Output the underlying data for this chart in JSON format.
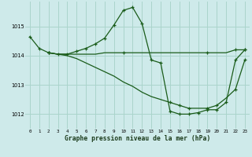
{
  "title": "Graphe pression niveau de la mer (hPa)",
  "bg_color": "#ceeaea",
  "grid_color": "#aad4cc",
  "line_color": "#1a5c1a",
  "xlim": [
    -0.5,
    23.5
  ],
  "ylim": [
    1011.5,
    1015.85
  ],
  "yticks": [
    1012,
    1013,
    1014,
    1015
  ],
  "xticks": [
    0,
    1,
    2,
    3,
    4,
    5,
    6,
    7,
    8,
    9,
    10,
    11,
    12,
    13,
    14,
    15,
    16,
    17,
    18,
    19,
    20,
    21,
    22,
    23
  ],
  "series0_x": [
    0,
    1,
    2,
    3,
    4,
    5,
    6,
    7,
    8,
    9,
    10,
    11,
    12,
    13,
    14,
    15,
    16,
    17,
    18,
    19,
    20,
    21,
    22,
    23
  ],
  "series0_y": [
    1014.65,
    1014.25,
    1014.1,
    1014.05,
    1014.05,
    1014.15,
    1014.25,
    1014.4,
    1014.6,
    1015.05,
    1015.55,
    1015.65,
    1015.1,
    1013.85,
    1013.75,
    1012.1,
    1012.0,
    1012.0,
    1012.05,
    1012.15,
    1012.15,
    1012.4,
    1013.85,
    1014.2
  ],
  "series1_x": [
    2,
    3,
    4,
    5,
    6,
    7,
    8,
    9,
    10,
    11,
    12,
    13,
    14,
    15,
    16,
    17,
    18,
    19,
    20,
    21,
    22,
    23
  ],
  "series1_y": [
    1014.1,
    1014.05,
    1014.05,
    1014.05,
    1014.05,
    1014.05,
    1014.1,
    1014.1,
    1014.1,
    1014.1,
    1014.1,
    1014.1,
    1014.1,
    1014.1,
    1014.1,
    1014.1,
    1014.1,
    1014.1,
    1014.1,
    1014.1,
    1014.2,
    1014.2
  ],
  "series1_markers_x": [
    2,
    10,
    19,
    22,
    23
  ],
  "series1_markers_y": [
    1014.1,
    1014.1,
    1014.1,
    1014.2,
    1014.2
  ],
  "series2_x": [
    2,
    3,
    4,
    5,
    6,
    7,
    8,
    9,
    10,
    11,
    12,
    13,
    14,
    15,
    16,
    17,
    18,
    19,
    20,
    21,
    22,
    23
  ],
  "series2_y": [
    1014.1,
    1014.05,
    1014.0,
    1013.9,
    1013.75,
    1013.6,
    1013.45,
    1013.3,
    1013.1,
    1012.95,
    1012.75,
    1012.6,
    1012.5,
    1012.4,
    1012.3,
    1012.2,
    1012.2,
    1012.2,
    1012.3,
    1012.55,
    1012.85,
    1013.85
  ],
  "series2_markers_x": [
    2,
    15,
    16,
    17,
    19,
    20,
    22,
    23
  ],
  "series2_markers_y": [
    1014.1,
    1012.4,
    1012.3,
    1012.2,
    1012.2,
    1012.3,
    1012.85,
    1013.85
  ]
}
